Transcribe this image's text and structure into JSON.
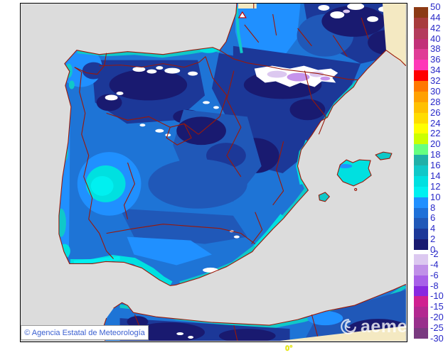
{
  "map": {
    "copyright": "© Agencia Estatal de Meteorología",
    "watermark_text": "aemet",
    "meridian_label": "0°",
    "colors": {
      "sea": "#DCDCDC",
      "out_of_domain": "#F4E9C2",
      "boundary_lines": "#9A1808",
      "frame_border": "#000000",
      "copyright_text": "#3A5FD0",
      "meridian_text": "#E8E800"
    }
  },
  "legend": {
    "text_color": "#2929C8",
    "upper": {
      "labels": [
        "50",
        "44",
        "42",
        "40",
        "38",
        "36",
        "34",
        "32",
        "30",
        "28",
        "26",
        "24",
        "22",
        "20",
        "18",
        "16",
        "14",
        "12",
        "10",
        "8",
        "6",
        "4",
        "2",
        "0"
      ],
      "colors": [
        "#8C3A14",
        "#A83C3C",
        "#B43C5C",
        "#C23078",
        "#E03C96",
        "#FF38B8",
        "#FF0000",
        "#FF7800",
        "#FFA000",
        "#FFC000",
        "#FFDC00",
        "#FFFF00",
        "#CCFF00",
        "#66FF80",
        "#20B0A8",
        "#10C8C8",
        "#00E0E0",
        "#00F0F0",
        "#2090FF",
        "#1E70D8",
        "#2058B8",
        "#1C3898",
        "#191A70"
      ]
    },
    "lower": {
      "labels": [
        "-2",
        "-4",
        "-6",
        "-8",
        "-10",
        "-15",
        "-20",
        "-25",
        "-30"
      ],
      "colors": [
        "#DCC8F0",
        "#C090E8",
        "#A860E8",
        "#8828E0",
        "#D02090",
        "#B32890",
        "#99308C",
        "#7A3A80"
      ]
    }
  }
}
